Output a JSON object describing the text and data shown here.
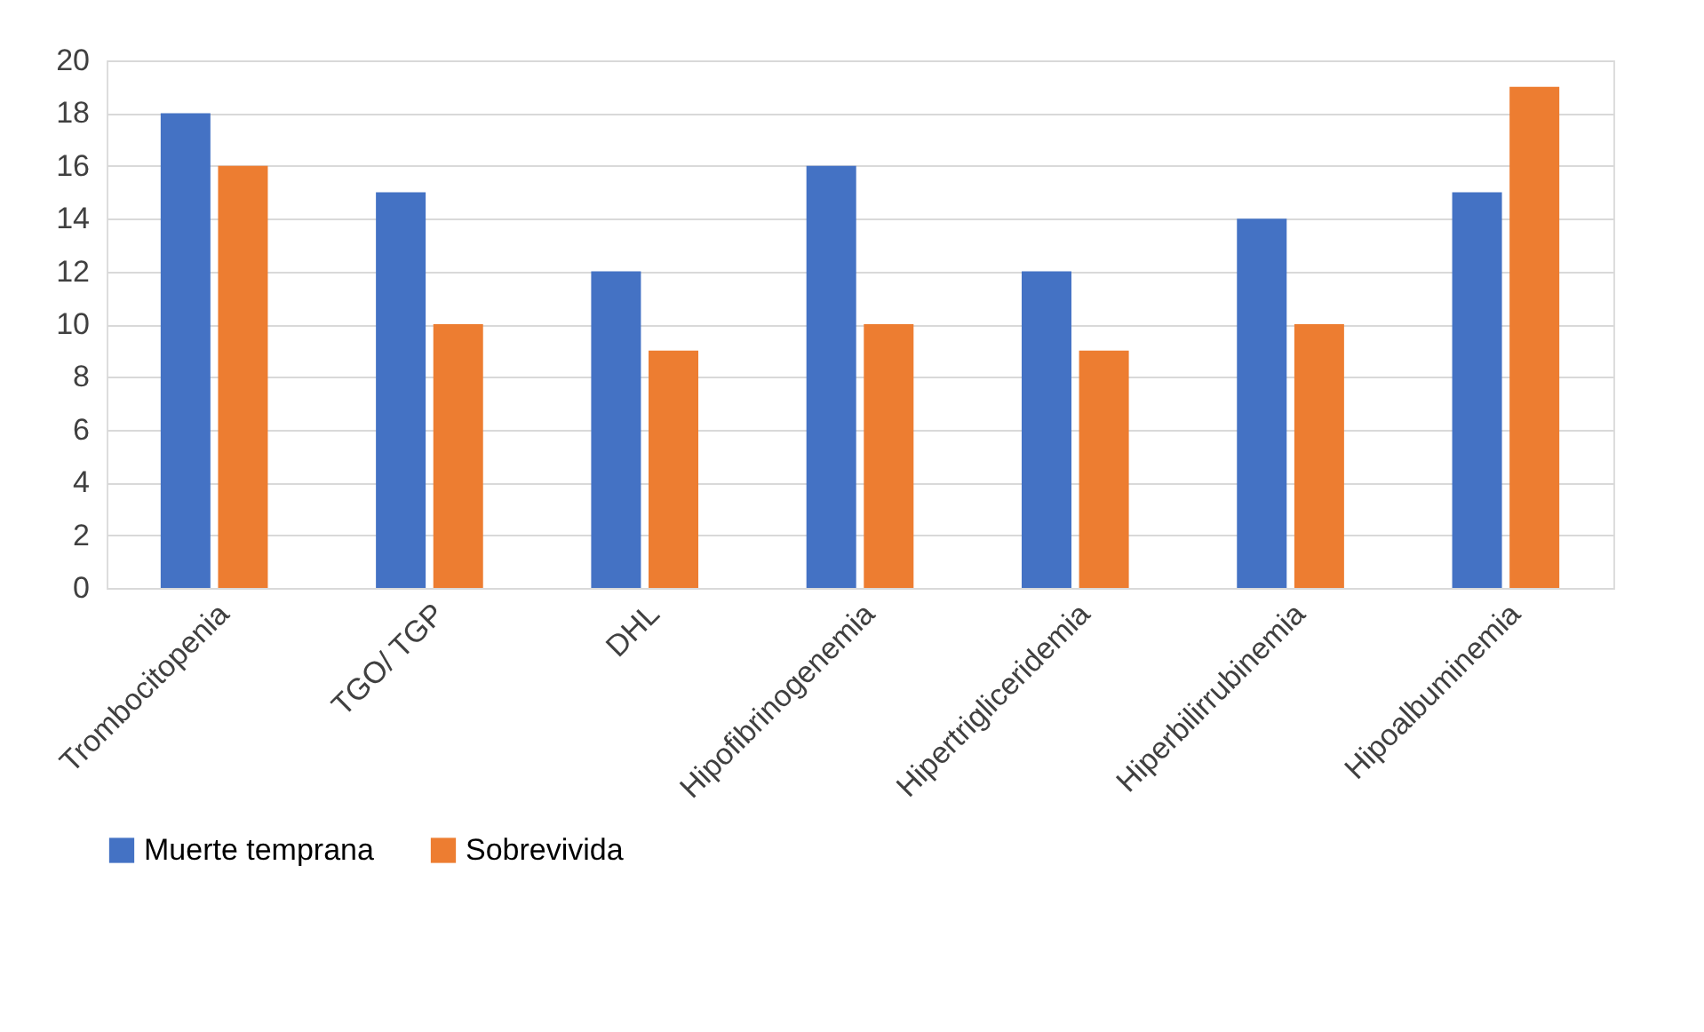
{
  "chart_data": {
    "type": "bar",
    "categories": [
      "Trombocitopenia",
      "TGO/ TGP",
      "DHL",
      "Hipofibrinogenemia",
      "Hipertrigliceridemia",
      "Hiperbilirrubinemia",
      "Hipoalbuminemia"
    ],
    "series": [
      {
        "name": "Muerte temprana",
        "color": "#4472c4",
        "values": [
          18,
          15,
          12,
          16,
          12,
          14,
          15
        ]
      },
      {
        "name": "Sobrevivida",
        "color": "#ed7d31",
        "values": [
          16,
          10,
          9,
          10,
          9,
          10,
          19
        ]
      }
    ],
    "ylim": [
      0,
      20
    ],
    "yticks": [
      0,
      2,
      4,
      6,
      8,
      10,
      12,
      14,
      16,
      18,
      20
    ],
    "grid": "y",
    "legend": "bottom"
  }
}
